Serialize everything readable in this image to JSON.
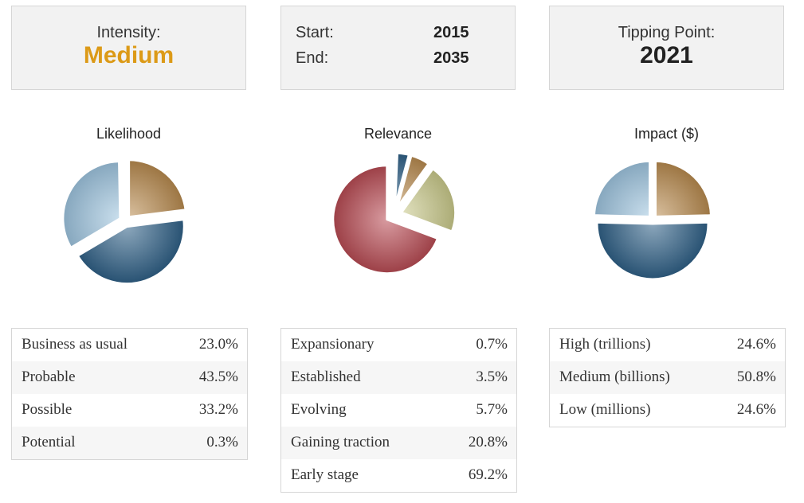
{
  "intensity": {
    "label": "Intensity:",
    "value": "Medium",
    "value_color": "#dc9a17"
  },
  "period": {
    "start_label": "Start:",
    "start_value": "2015",
    "end_label": "End:",
    "end_value": "2035"
  },
  "tipping": {
    "label": "Tipping Point:",
    "value": "2021"
  },
  "chart_data": [
    {
      "type": "pie",
      "title": "Likelihood",
      "slices": [
        {
          "name": "Business as usual",
          "value": 23.0,
          "label": "23.0%",
          "color": "#b88a4e"
        },
        {
          "name": "Probable",
          "value": 43.5,
          "label": "43.5%",
          "color": "#2e5f86"
        },
        {
          "name": "Possible",
          "value": 33.2,
          "label": "33.2%",
          "color": "#9ec4df"
        },
        {
          "name": "Potential",
          "value": 0.3,
          "label": "0.3%",
          "color": "#b88a4e"
        }
      ]
    },
    {
      "type": "pie",
      "title": "Relevance",
      "slices": [
        {
          "name": "Expansionary",
          "value": 0.7,
          "label": "0.7%",
          "color": "#2e5f86"
        },
        {
          "name": "Established",
          "value": 3.5,
          "label": "3.5%",
          "color": "#2e5f86"
        },
        {
          "name": "Evolving",
          "value": 5.7,
          "label": "5.7%",
          "color": "#b88a4e"
        },
        {
          "name": "Gaining traction",
          "value": 20.8,
          "label": "20.8%",
          "color": "#c9c98a"
        },
        {
          "name": "Early stage",
          "value": 69.2,
          "label": "69.2%",
          "color": "#b84a52"
        }
      ]
    },
    {
      "type": "pie",
      "title": "Impact ($)",
      "slices": [
        {
          "name": "High (trillions)",
          "value": 24.6,
          "label": "24.6%",
          "color": "#b88a4e"
        },
        {
          "name": "Medium (billions)",
          "value": 50.8,
          "label": "50.8%",
          "color": "#2e5f86"
        },
        {
          "name": "Low (millions)",
          "value": 24.6,
          "label": "24.6%",
          "color": "#9ec4df"
        }
      ]
    }
  ]
}
